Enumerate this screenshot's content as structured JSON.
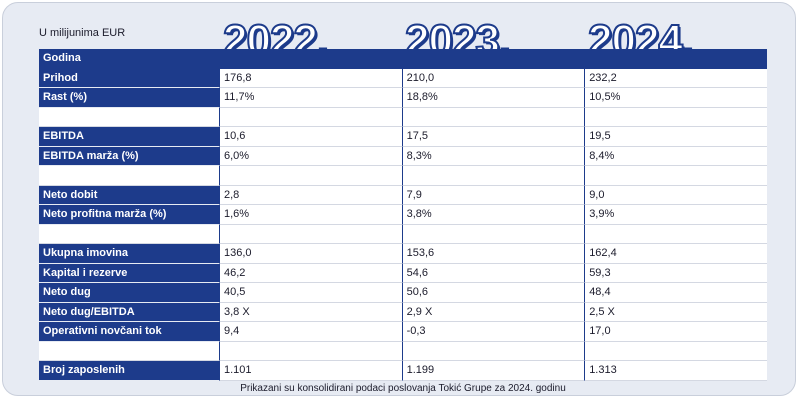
{
  "unit_label": "U milijunima EUR",
  "years": [
    "2022.",
    "2023.",
    "2024."
  ],
  "header_label": "Godina",
  "rows": [
    {
      "label": "Prihod",
      "values": [
        "176,8",
        "210,0",
        "232,2"
      ]
    },
    {
      "label": "Rast (%)",
      "values": [
        "11,7%",
        "18,8%",
        "10,5%"
      ]
    },
    {
      "label": "",
      "values": [
        "",
        "",
        ""
      ]
    },
    {
      "label": "EBITDA",
      "values": [
        "10,6",
        "17,5",
        "19,5"
      ]
    },
    {
      "label": "EBITDA marža (%)",
      "values": [
        "6,0%",
        "8,3%",
        "8,4%"
      ]
    },
    {
      "label": "",
      "values": [
        "",
        "",
        ""
      ]
    },
    {
      "label": "Neto dobit",
      "values": [
        "2,8",
        "7,9",
        "9,0"
      ]
    },
    {
      "label": "Neto profitna marža (%)",
      "values": [
        "1,6%",
        "3,8%",
        "3,9%"
      ]
    },
    {
      "label": "",
      "values": [
        "",
        "",
        ""
      ]
    },
    {
      "label": "Ukupna imovina",
      "values": [
        "136,0",
        "153,6",
        "162,4"
      ]
    },
    {
      "label": "Kapital i rezerve",
      "values": [
        "46,2",
        "54,6",
        "59,3"
      ]
    },
    {
      "label": "Neto dug",
      "values": [
        "40,5",
        "50,6",
        "48,4"
      ]
    },
    {
      "label": "Neto dug/EBITDA",
      "values": [
        "3,8 X",
        "2,9 X",
        "2,5 X"
      ]
    },
    {
      "label": "Operativni novčani tok",
      "values": [
        "9,4",
        "-0,3",
        "17,0"
      ]
    },
    {
      "label": "",
      "values": [
        "",
        "",
        ""
      ]
    },
    {
      "label": "Broj zaposlenih",
      "values": [
        "1.101",
        "1.199",
        "1.313"
      ]
    }
  ],
  "footnote": "Prikazani su konsolidirani podaci poslovanja Tokić Grupe za 2024. godinu",
  "colors": {
    "navy": "#1d3b8b",
    "background": "#e7ebf3"
  }
}
